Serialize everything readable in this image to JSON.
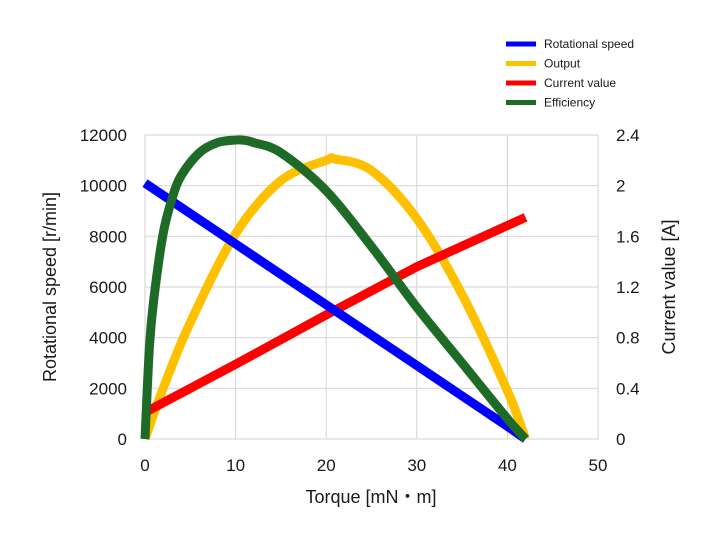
{
  "chart_data": {
    "type": "line",
    "xlabel": "Torque [mN・m]",
    "ylabel": "Rotational speed [r/min]",
    "y2label": "Current value [A]",
    "xlim": [
      0,
      50
    ],
    "ylim": [
      0,
      12000
    ],
    "y2lim": [
      0,
      2.4
    ],
    "x_ticks": [
      "0",
      "10",
      "20",
      "30",
      "40",
      "50"
    ],
    "y_ticks": [
      "0",
      "2000",
      "4000",
      "6000",
      "8000",
      "10000",
      "12000"
    ],
    "y2_ticks": [
      "0",
      "0.4",
      "0.8",
      "1.2",
      "1.6",
      "2",
      "2.4"
    ],
    "grid": true,
    "legend_position": "top-right",
    "series": [
      {
        "name": "Rotational speed",
        "color": "#0000ff",
        "axis": "left",
        "x": [
          0,
          5,
          10,
          15,
          20,
          25,
          30,
          35,
          40,
          42
        ],
        "y": [
          10100,
          8900,
          7700,
          6500,
          5300,
          4100,
          2900,
          1700,
          500,
          0
        ]
      },
      {
        "name": "Output",
        "color": "#ffc000",
        "axis": "left",
        "x": [
          0,
          2,
          5,
          10,
          15,
          20,
          21,
          25,
          30,
          35,
          40,
          42
        ],
        "y": [
          0,
          2000,
          4600,
          8100,
          10200,
          11000,
          11050,
          10600,
          8700,
          5700,
          1900,
          0
        ]
      },
      {
        "name": "Current value",
        "color": "#ff0000",
        "axis": "right",
        "x": [
          0,
          10,
          20,
          30,
          42
        ],
        "y": [
          0.21,
          0.59,
          0.98,
          1.36,
          1.75
        ]
      },
      {
        "name": "Efficiency",
        "color": "#1e6b27",
        "axis": "left",
        "x": [
          0,
          0.5,
          1,
          2,
          3,
          4,
          6,
          8,
          10,
          11,
          12,
          15,
          20,
          25,
          30,
          35,
          40,
          42
        ],
        "y": [
          0,
          3700,
          5600,
          8100,
          9500,
          10400,
          11300,
          11700,
          11800,
          11790,
          11700,
          11300,
          9800,
          7600,
          5200,
          3000,
          800,
          0
        ]
      }
    ]
  }
}
